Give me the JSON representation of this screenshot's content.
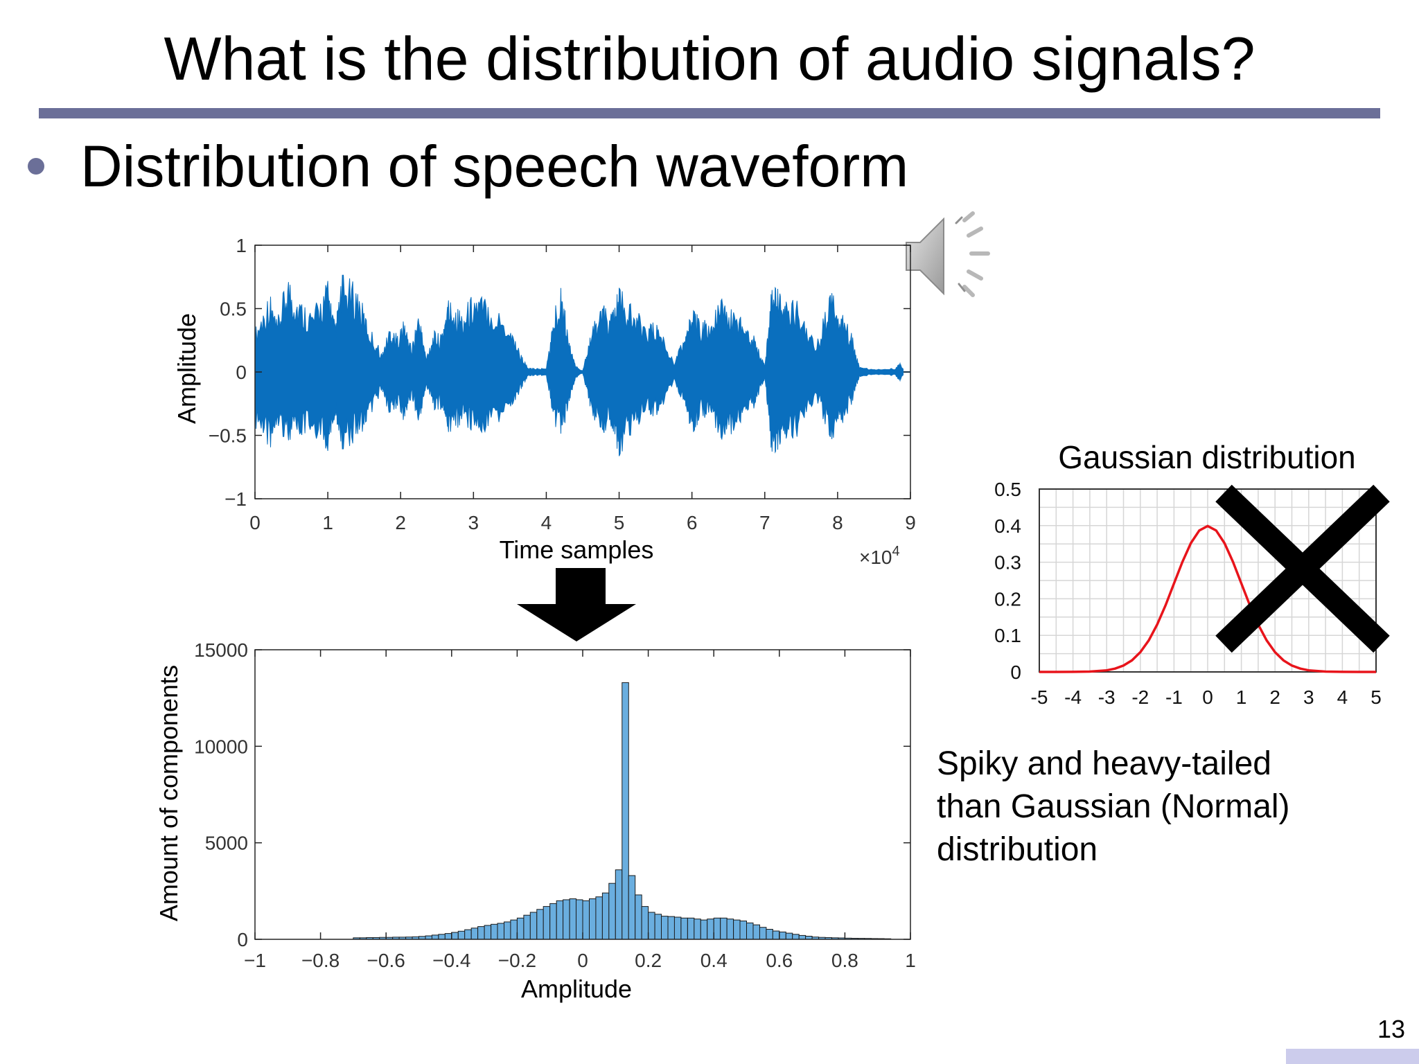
{
  "slide": {
    "title": "What is the distribution of audio signals?",
    "bullet": "Distribution of speech waveform",
    "note": "Spiky and heavy-tailed\nthan Gaussian (Normal)\ndistribution",
    "page_number": "13",
    "speaker_icon": "speaker-icon"
  },
  "colors": {
    "accent": "#6b6f98",
    "waveform": "#0a6fbe",
    "histogram": "#6aaedf",
    "gaussian": "#e8141b",
    "cross": "#000000",
    "footer_bar": "#ccccec"
  },
  "chart_data": [
    {
      "type": "line",
      "xlabel": "Time samples",
      "ylabel": "Amplitude",
      "x_exponent_label": "×10",
      "x_exponent": "4",
      "xlim": [
        0,
        9
      ],
      "ylim": [
        -1,
        1
      ],
      "xticks": [
        "0",
        "1",
        "2",
        "3",
        "4",
        "5",
        "6",
        "7",
        "8",
        "9"
      ],
      "yticks": [
        "1",
        "0.5",
        "0",
        "−0.5",
        "−1"
      ],
      "envelope": {
        "x": [
          0.0,
          0.2,
          0.3,
          0.45,
          0.6,
          0.8,
          1.0,
          1.1,
          1.2,
          1.4,
          1.55,
          1.75,
          1.85,
          1.95,
          2.05,
          2.15,
          2.25,
          2.35,
          2.45,
          2.55,
          2.65,
          2.75,
          2.85,
          3.0,
          3.2,
          3.5,
          3.65,
          3.75,
          3.85,
          4.0,
          4.1,
          4.2,
          4.3,
          4.4,
          4.5,
          4.6,
          4.75,
          4.9,
          5.0,
          5.2,
          5.4,
          5.55,
          5.75,
          5.9,
          6.0,
          6.1,
          6.25,
          6.4,
          6.55,
          6.7,
          6.85,
          7.0,
          7.1,
          7.2,
          7.3,
          7.5,
          7.7,
          7.9,
          8.05,
          8.2,
          8.3,
          8.5,
          8.8,
          8.85,
          8.9
        ],
        "upper": [
          0.35,
          0.65,
          0.4,
          0.8,
          0.6,
          0.5,
          0.75,
          0.38,
          0.78,
          0.7,
          0.4,
          0.15,
          0.38,
          0.3,
          0.42,
          0.2,
          0.5,
          0.12,
          0.33,
          0.3,
          0.6,
          0.55,
          0.48,
          0.65,
          0.6,
          0.4,
          0.15,
          0.03,
          0.03,
          0.03,
          0.45,
          0.75,
          0.3,
          0.05,
          0.01,
          0.3,
          0.55,
          0.48,
          0.68,
          0.5,
          0.4,
          0.38,
          0.08,
          0.3,
          0.5,
          0.45,
          0.4,
          0.6,
          0.5,
          0.45,
          0.3,
          0.05,
          0.72,
          0.65,
          0.58,
          0.56,
          0.2,
          0.65,
          0.5,
          0.3,
          0.04,
          0.02,
          0.03,
          0.08,
          0.02
        ],
        "lower": [
          -0.45,
          -0.65,
          -0.4,
          -0.6,
          -0.55,
          -0.5,
          -0.65,
          -0.35,
          -0.62,
          -0.55,
          -0.4,
          -0.15,
          -0.38,
          -0.28,
          -0.4,
          -0.2,
          -0.45,
          -0.12,
          -0.3,
          -0.3,
          -0.5,
          -0.5,
          -0.4,
          -0.5,
          -0.5,
          -0.35,
          -0.15,
          -0.03,
          -0.03,
          -0.03,
          -0.4,
          -0.55,
          -0.3,
          -0.05,
          -0.01,
          -0.3,
          -0.5,
          -0.45,
          -0.68,
          -0.45,
          -0.35,
          -0.35,
          -0.08,
          -0.28,
          -0.5,
          -0.4,
          -0.35,
          -0.55,
          -0.5,
          -0.4,
          -0.3,
          -0.05,
          -0.7,
          -0.6,
          -0.55,
          -0.5,
          -0.2,
          -0.55,
          -0.45,
          -0.25,
          -0.04,
          -0.02,
          -0.03,
          -0.08,
          -0.02
        ]
      }
    },
    {
      "type": "bar",
      "xlabel": "Amplitude",
      "ylabel": "Amount of components",
      "xlim": [
        -1,
        1
      ],
      "ylim": [
        0,
        15000
      ],
      "xticks": [
        "−1",
        "−0.8",
        "−0.6",
        "−0.4",
        "−0.2",
        "0",
        "0.2",
        "0.4",
        "0.6",
        "0.8",
        "1"
      ],
      "yticks": [
        "15000",
        "10000",
        "5000",
        "0"
      ],
      "bin_width": 0.02,
      "bin_start": -0.7,
      "values": [
        80,
        80,
        90,
        90,
        100,
        100,
        110,
        110,
        120,
        130,
        150,
        180,
        220,
        260,
        300,
        360,
        420,
        500,
        580,
        660,
        720,
        780,
        830,
        900,
        1000,
        1100,
        1250,
        1400,
        1550,
        1700,
        1850,
        2000,
        2050,
        2100,
        2050,
        2000,
        2100,
        2200,
        2400,
        2900,
        3600,
        13300,
        3300,
        2300,
        1700,
        1400,
        1300,
        1200,
        1180,
        1150,
        1100,
        1100,
        1050,
        1000,
        1050,
        1100,
        1100,
        1050,
        1000,
        950,
        850,
        750,
        620,
        520,
        430,
        380,
        320,
        260,
        200,
        160,
        120,
        100,
        90,
        80,
        70,
        60,
        55,
        50,
        45,
        40,
        35,
        30
      ]
    },
    {
      "type": "line",
      "title": "Gaussian distribution",
      "xlim": [
        -5,
        5
      ],
      "ylim": [
        0,
        0.5
      ],
      "xticks": [
        "-5",
        "-4",
        "-3",
        "-2",
        "-1",
        "0",
        "1",
        "2",
        "3",
        "4",
        "5"
      ],
      "yticks": [
        "0.5",
        "0.4",
        "0.3",
        "0.2",
        "0.1",
        "0"
      ],
      "series": [
        {
          "x": [
            -5,
            -4.5,
            -4,
            -3.5,
            -3,
            -2.75,
            -2.5,
            -2.25,
            -2,
            -1.75,
            -1.5,
            -1.25,
            -1,
            -0.75,
            -0.5,
            -0.25,
            0,
            0.25,
            0.5,
            0.75,
            1,
            1.25,
            1.5,
            1.75,
            2,
            2.25,
            2.5,
            2.75,
            3,
            3.5,
            4,
            4.5,
            5
          ],
          "y": [
            0.0,
            0.0,
            0.0001,
            0.0009,
            0.0044,
            0.0091,
            0.0175,
            0.0317,
            0.054,
            0.0863,
            0.1295,
            0.1826,
            0.242,
            0.3011,
            0.3521,
            0.3867,
            0.3989,
            0.3867,
            0.3521,
            0.3011,
            0.242,
            0.1826,
            0.1295,
            0.0863,
            0.054,
            0.0317,
            0.0175,
            0.0091,
            0.0044,
            0.0009,
            0.0001,
            0.0,
            0.0
          ]
        }
      ]
    }
  ]
}
